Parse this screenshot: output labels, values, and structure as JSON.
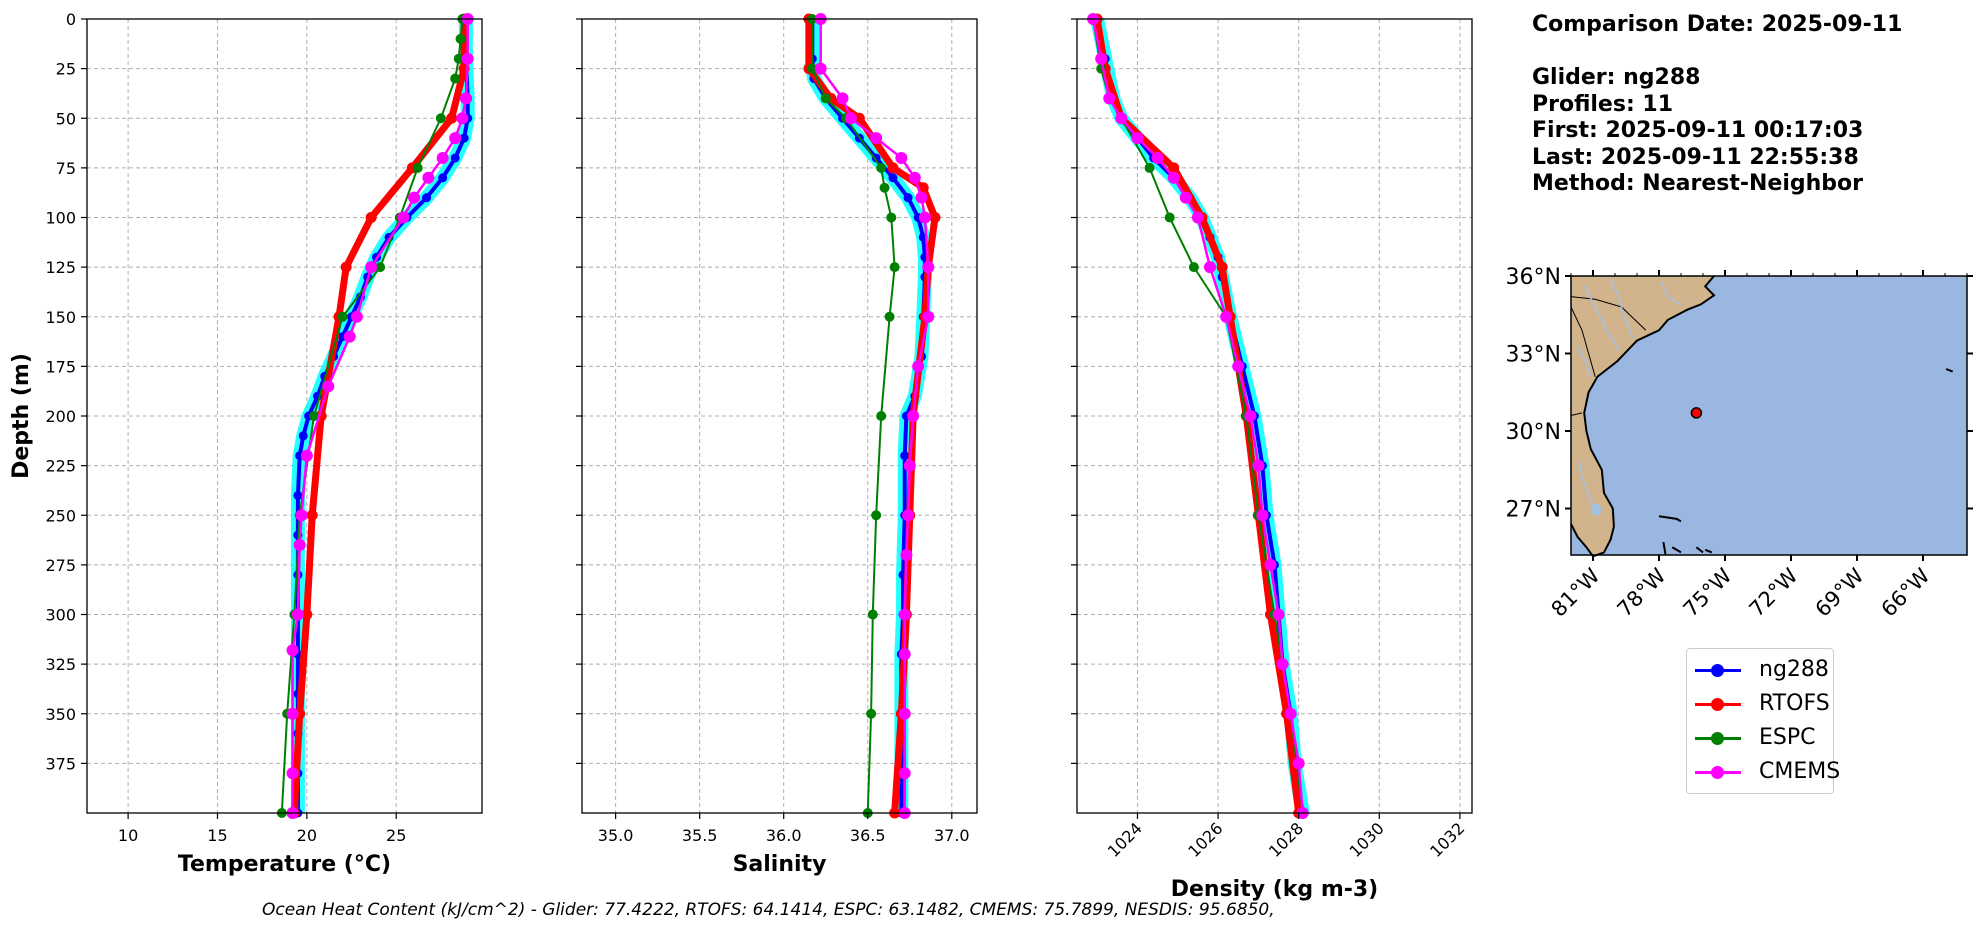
{
  "info": {
    "comparison_date": "Comparison Date: 2025-09-11",
    "glider": "Glider: ng288",
    "profiles": "Profiles: 11",
    "first": "First: 2025-09-11 00:17:03",
    "last": "Last: 2025-09-11 22:55:38",
    "method": "Method: Nearest-Neighbor"
  },
  "footer": "Ocean Heat Content (kJ/cm^2) - Glider: 77.4222,  RTOFS: 64.1414,  ESPC: 63.1482,  CMEMS: 75.7899,  NESDIS: 95.6850,",
  "legend": [
    {
      "label": "ng288",
      "color": "#0000ff"
    },
    {
      "label": "RTOFS",
      "color": "#ff0000"
    },
    {
      "label": "ESPC",
      "color": "#008000"
    },
    {
      "label": "CMEMS",
      "color": "#ff00ff"
    }
  ],
  "colors": {
    "glider_halo": "#00ffff",
    "land": "#d2b48c",
    "ocean": "#9ab7e2",
    "grid": "#b0b0b0"
  },
  "chart_data": [
    {
      "type": "line",
      "title": "",
      "xlabel": "Temperature (°C)",
      "ylabel": "Depth (m)",
      "xlim": [
        7.7,
        29.8
      ],
      "ylim": [
        400,
        0
      ],
      "xticks": [
        10,
        15,
        20,
        25
      ],
      "yticks": [
        0,
        25,
        50,
        75,
        100,
        125,
        150,
        175,
        200,
        225,
        250,
        275,
        300,
        325,
        350,
        375
      ],
      "grid": true,
      "series": [
        {
          "name": "ng288",
          "depth": [
            0,
            20,
            40,
            50,
            60,
            70,
            80,
            90,
            100,
            110,
            120,
            130,
            140,
            150,
            160,
            170,
            180,
            190,
            200,
            210,
            220,
            240,
            260,
            280,
            300,
            320,
            340,
            360,
            380,
            400
          ],
          "values": [
            28.9,
            28.9,
            29.0,
            29.0,
            28.8,
            28.3,
            27.6,
            26.7,
            25.6,
            24.6,
            23.9,
            23.4,
            23.0,
            22.5,
            22.0,
            21.5,
            21.0,
            20.6,
            20.1,
            19.8,
            19.6,
            19.5,
            19.5,
            19.5,
            19.5,
            19.5,
            19.5,
            19.5,
            19.5,
            19.5
          ]
        },
        {
          "name": "RTOFS",
          "depth": [
            0,
            25,
            50,
            75,
            100,
            125,
            150,
            200,
            250,
            300,
            350,
            400
          ],
          "values": [
            28.8,
            28.8,
            28.1,
            25.9,
            23.6,
            22.2,
            21.8,
            20.8,
            20.3,
            20.0,
            19.6,
            19.3
          ]
        },
        {
          "name": "ESPC",
          "depth": [
            0,
            10,
            20,
            30,
            50,
            75,
            100,
            125,
            150,
            200,
            250,
            300,
            350,
            400
          ],
          "values": [
            28.7,
            28.6,
            28.5,
            28.3,
            27.5,
            26.2,
            25.2,
            24.1,
            22.0,
            20.4,
            19.6,
            19.3,
            18.9,
            18.6
          ]
        },
        {
          "name": "CMEMS",
          "depth": [
            0,
            20,
            40,
            50,
            60,
            70,
            80,
            90,
            100,
            125,
            150,
            160,
            185,
            220,
            250,
            265,
            300,
            318,
            350,
            380,
            400
          ],
          "values": [
            29.0,
            29.0,
            28.9,
            28.7,
            28.3,
            27.6,
            26.8,
            26.0,
            25.4,
            23.6,
            22.8,
            22.4,
            21.2,
            20.0,
            19.7,
            19.6,
            19.5,
            19.2,
            19.2,
            19.2,
            19.2
          ]
        }
      ]
    },
    {
      "type": "line",
      "title": "",
      "xlabel": "Salinity",
      "ylabel": "",
      "xlim": [
        34.8,
        37.15
      ],
      "ylim": [
        400,
        0
      ],
      "xticks": [
        35.0,
        35.5,
        36.0,
        36.5,
        37.0
      ],
      "grid": true,
      "series": [
        {
          "name": "ng288",
          "depth": [
            0,
            20,
            30,
            40,
            50,
            60,
            70,
            80,
            90,
            100,
            110,
            120,
            130,
            150,
            170,
            190,
            200,
            220,
            250,
            280,
            300,
            320,
            350,
            380,
            400
          ],
          "values": [
            36.17,
            36.17,
            36.18,
            36.25,
            36.35,
            36.45,
            36.55,
            36.65,
            36.74,
            36.8,
            36.83,
            36.84,
            36.84,
            36.83,
            36.82,
            36.78,
            36.73,
            36.72,
            36.72,
            36.71,
            36.71,
            36.7,
            36.7,
            36.7,
            36.7
          ]
        },
        {
          "name": "RTOFS",
          "depth": [
            0,
            25,
            40,
            50,
            75,
            85,
            100,
            125,
            150,
            200,
            250,
            300,
            350,
            400
          ],
          "values": [
            36.15,
            36.15,
            36.28,
            36.45,
            36.65,
            36.83,
            36.9,
            36.86,
            36.84,
            36.77,
            36.75,
            36.73,
            36.7,
            36.66
          ]
        },
        {
          "name": "ESPC",
          "depth": [
            0,
            25,
            40,
            50,
            75,
            85,
            100,
            125,
            150,
            200,
            250,
            300,
            350,
            400
          ],
          "values": [
            36.17,
            36.17,
            36.25,
            36.37,
            36.58,
            36.6,
            36.64,
            36.66,
            36.63,
            36.58,
            36.55,
            36.53,
            36.52,
            36.5
          ]
        },
        {
          "name": "CMEMS",
          "depth": [
            0,
            25,
            40,
            50,
            60,
            70,
            80,
            90,
            100,
            125,
            150,
            175,
            200,
            225,
            250,
            270,
            300,
            320,
            350,
            380,
            400
          ],
          "values": [
            36.22,
            36.22,
            36.35,
            36.4,
            36.55,
            36.7,
            36.78,
            36.82,
            36.84,
            36.86,
            36.86,
            36.8,
            36.77,
            36.75,
            36.74,
            36.73,
            36.72,
            36.72,
            36.72,
            36.72,
            36.72
          ]
        }
      ]
    },
    {
      "type": "line",
      "title": "",
      "xlabel": "Density (kg m-3)",
      "ylabel": "",
      "xlim": [
        1022.5,
        1032.3
      ],
      "ylim": [
        400,
        0
      ],
      "xticks": [
        1024,
        1026,
        1028,
        1030,
        1032
      ],
      "grid": true,
      "series": [
        {
          "name": "ng288",
          "depth": [
            0,
            20,
            40,
            50,
            60,
            70,
            80,
            90,
            100,
            110,
            120,
            130,
            150,
            175,
            200,
            225,
            250,
            275,
            300,
            325,
            350,
            375,
            400
          ],
          "values": [
            1023.0,
            1023.2,
            1023.4,
            1023.6,
            1024.0,
            1024.4,
            1024.9,
            1025.3,
            1025.6,
            1025.8,
            1026.0,
            1026.1,
            1026.3,
            1026.6,
            1026.9,
            1027.1,
            1027.2,
            1027.4,
            1027.5,
            1027.6,
            1027.8,
            1027.9,
            1028.1
          ]
        },
        {
          "name": "RTOFS",
          "depth": [
            0,
            25,
            50,
            75,
            100,
            125,
            150,
            200,
            250,
            300,
            350,
            400
          ],
          "values": [
            1023.0,
            1023.2,
            1023.6,
            1024.9,
            1025.6,
            1026.1,
            1026.3,
            1026.7,
            1027.0,
            1027.3,
            1027.7,
            1028.0
          ]
        },
        {
          "name": "ESPC",
          "depth": [
            0,
            25,
            40,
            50,
            75,
            100,
            125,
            150,
            200,
            250,
            300,
            350,
            400
          ],
          "values": [
            1022.9,
            1023.1,
            1023.3,
            1023.6,
            1024.3,
            1024.8,
            1025.4,
            1026.2,
            1026.7,
            1027.0,
            1027.4,
            1027.8,
            1028.1
          ]
        },
        {
          "name": "CMEMS",
          "depth": [
            0,
            20,
            40,
            50,
            60,
            70,
            80,
            90,
            100,
            125,
            150,
            175,
            200,
            225,
            250,
            275,
            300,
            325,
            350,
            375,
            400
          ],
          "values": [
            1022.9,
            1023.1,
            1023.3,
            1023.6,
            1024.0,
            1024.5,
            1024.9,
            1025.2,
            1025.5,
            1025.8,
            1026.2,
            1026.5,
            1026.8,
            1027.0,
            1027.1,
            1027.3,
            1027.5,
            1027.6,
            1027.8,
            1028.0,
            1028.1
          ]
        }
      ]
    },
    {
      "type": "map",
      "lon_ticks": [
        "81°W",
        "78°W",
        "75°W",
        "72°W",
        "69°W",
        "66°W"
      ],
      "lat_ticks": [
        "36°N",
        "33°N",
        "30°N",
        "27°N"
      ],
      "lon_range": [
        -82,
        -64
      ],
      "lat_range": [
        25.2,
        36
      ],
      "glider_position": {
        "lon": -76.3,
        "lat": 30.7
      }
    }
  ]
}
